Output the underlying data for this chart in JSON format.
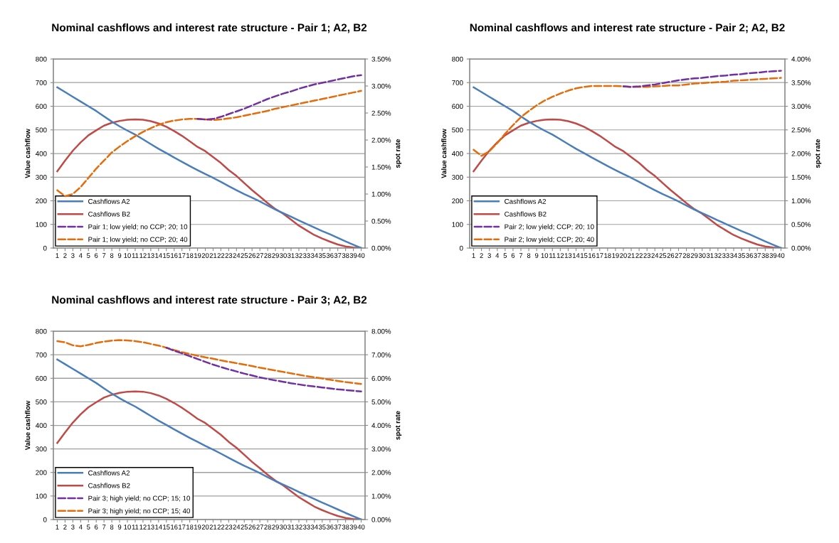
{
  "chart_data": [
    {
      "type": "line",
      "title": "Nominal cashflows and interest rate structure - Pair 1; A2, B2",
      "ylabel": "Value cashflow",
      "y2label": "spot rate",
      "grid": "y",
      "legend": "bottom left",
      "marker": "none",
      "categories": [
        "1",
        "2",
        "3",
        "4",
        "5",
        "6",
        "7",
        "8",
        "9",
        "10",
        "11",
        "12",
        "13",
        "14",
        "15",
        "16",
        "17",
        "18",
        "19",
        "20",
        "21",
        "22",
        "23",
        "24",
        "25",
        "26",
        "27",
        "28",
        "29",
        "30",
        "31",
        "32",
        "33",
        "34",
        "35",
        "36",
        "37",
        "38",
        "39",
        "40"
      ],
      "ylim": [
        0,
        800
      ],
      "yticks": [
        0,
        100,
        200,
        300,
        400,
        500,
        600,
        700,
        800
      ],
      "y2lim": [
        0,
        3.5
      ],
      "y2ticks": [
        {
          "value": 0,
          "label": "0.00%"
        },
        {
          "value": 0.5,
          "label": "0.50%"
        },
        {
          "value": 1,
          "label": "1.00%"
        },
        {
          "value": 1.5,
          "label": "1.50%"
        },
        {
          "value": 2,
          "label": "2.00%"
        },
        {
          "value": 2.5,
          "label": "2.50%"
        },
        {
          "value": 3,
          "label": "3.00%"
        },
        {
          "value": 3.5,
          "label": "3.50%"
        }
      ],
      "series": [
        {
          "name": "Cashflows A2",
          "color": "#4a7ebb",
          "line_style": "solid",
          "values": [
            680,
            660,
            640,
            620,
            600,
            580,
            557,
            535,
            515,
            497,
            480,
            460,
            440,
            420,
            402,
            383,
            365,
            347,
            330,
            313,
            297,
            280,
            262,
            245,
            228,
            213,
            197,
            180,
            163,
            148,
            133,
            117,
            102,
            87,
            72,
            58,
            43,
            28,
            14,
            0
          ]
        },
        {
          "name": "Cashflows B2",
          "color": "#be4b48",
          "line_style": "solid",
          "values": [
            325,
            370,
            412,
            447,
            477,
            498,
            518,
            530,
            538,
            543,
            544,
            543,
            537,
            527,
            513,
            495,
            475,
            452,
            428,
            410,
            385,
            360,
            330,
            305,
            275,
            245,
            218,
            190,
            165,
            145,
            120,
            95,
            75,
            55,
            40,
            27,
            15,
            7,
            2,
            0
          ]
        },
        {
          "name": "Pair 1; low yield; no CCP; 20; 10",
          "color": "#7030a0",
          "line_style": "dashed",
          "axis": "y2",
          "values": [
            null,
            null,
            null,
            null,
            null,
            null,
            null,
            null,
            null,
            null,
            null,
            null,
            null,
            null,
            null,
            null,
            null,
            null,
            2.39,
            2.38,
            2.39,
            2.43,
            2.48,
            2.53,
            2.58,
            2.64,
            2.7,
            2.76,
            2.81,
            2.86,
            2.9,
            2.95,
            2.99,
            3.03,
            3.06,
            3.09,
            3.12,
            3.15,
            3.18,
            3.2
          ]
        },
        {
          "name": "Pair 1; low yield; no CCP; 20; 40",
          "color": "#e46c0a",
          "line_style": "dashed",
          "axis": "y2",
          "values": [
            1.07,
            0.96,
            1.0,
            1.13,
            1.3,
            1.47,
            1.62,
            1.77,
            1.88,
            1.98,
            2.07,
            2.15,
            2.22,
            2.28,
            2.33,
            2.36,
            2.38,
            2.39,
            2.39,
            2.38,
            2.37,
            2.38,
            2.4,
            2.42,
            2.45,
            2.48,
            2.51,
            2.54,
            2.58,
            2.61,
            2.64,
            2.67,
            2.7,
            2.73,
            2.76,
            2.79,
            2.82,
            2.85,
            2.88,
            2.91
          ]
        }
      ]
    },
    {
      "type": "line",
      "title": "Nominal cashflows and interest rate structure - Pair 2; A2, B2",
      "ylabel": "Value cashflow",
      "y2label": "spot rate",
      "grid": "y",
      "legend": "bottom left",
      "marker": "none",
      "categories": [
        "1",
        "2",
        "3",
        "4",
        "5",
        "6",
        "7",
        "8",
        "9",
        "10",
        "11",
        "12",
        "13",
        "14",
        "15",
        "16",
        "17",
        "18",
        "19",
        "20",
        "21",
        "22",
        "23",
        "24",
        "25",
        "26",
        "27",
        "28",
        "29",
        "30",
        "31",
        "32",
        "33",
        "34",
        "35",
        "36",
        "37",
        "38",
        "39",
        "40"
      ],
      "ylim": [
        0,
        800
      ],
      "yticks": [
        0,
        100,
        200,
        300,
        400,
        500,
        600,
        700,
        800
      ],
      "y2lim": [
        0,
        4
      ],
      "y2ticks": [
        {
          "value": 0,
          "label": "0.00%"
        },
        {
          "value": 0.5,
          "label": "0.50%"
        },
        {
          "value": 1,
          "label": "1.00%"
        },
        {
          "value": 1.5,
          "label": "1.50%"
        },
        {
          "value": 2,
          "label": "2.00%"
        },
        {
          "value": 2.5,
          "label": "2.50%"
        },
        {
          "value": 3,
          "label": "3.00%"
        },
        {
          "value": 3.5,
          "label": "3.50%"
        },
        {
          "value": 4,
          "label": "4.00%"
        }
      ],
      "series": [
        {
          "name": "Cashflows A2",
          "color": "#4a7ebb",
          "line_style": "solid",
          "values": [
            680,
            660,
            640,
            620,
            600,
            580,
            557,
            535,
            515,
            497,
            480,
            460,
            440,
            420,
            402,
            383,
            365,
            347,
            330,
            313,
            297,
            280,
            262,
            245,
            228,
            213,
            197,
            180,
            163,
            148,
            133,
            117,
            102,
            87,
            72,
            58,
            43,
            28,
            14,
            0
          ]
        },
        {
          "name": "Cashflows B2",
          "color": "#be4b48",
          "line_style": "solid",
          "values": [
            325,
            370,
            412,
            447,
            477,
            498,
            518,
            530,
            538,
            543,
            544,
            543,
            537,
            527,
            513,
            495,
            475,
            452,
            428,
            410,
            385,
            360,
            330,
            305,
            275,
            245,
            218,
            190,
            165,
            145,
            120,
            95,
            75,
            55,
            40,
            27,
            15,
            7,
            2,
            0
          ]
        },
        {
          "name": "Pair 2; low yield; CCP; 20; 10",
          "color": "#7030a0",
          "line_style": "dashed",
          "axis": "y2",
          "values": [
            null,
            null,
            null,
            null,
            null,
            null,
            null,
            null,
            null,
            null,
            null,
            null,
            null,
            null,
            null,
            null,
            null,
            null,
            null,
            3.42,
            3.41,
            3.42,
            3.44,
            3.46,
            3.49,
            3.52,
            3.55,
            3.57,
            3.59,
            3.6,
            3.62,
            3.64,
            3.65,
            3.67,
            3.68,
            3.7,
            3.71,
            3.73,
            3.74,
            3.75
          ]
        },
        {
          "name": "Pair 2; low yield; CCP; 20; 40",
          "color": "#e46c0a",
          "line_style": "dashed",
          "axis": "y2",
          "values": [
            2.08,
            1.95,
            2.05,
            2.22,
            2.42,
            2.6,
            2.77,
            2.9,
            3.02,
            3.12,
            3.2,
            3.27,
            3.33,
            3.38,
            3.41,
            3.43,
            3.43,
            3.43,
            3.43,
            3.42,
            3.41,
            3.41,
            3.41,
            3.42,
            3.43,
            3.44,
            3.44,
            3.46,
            3.48,
            3.49,
            3.5,
            3.51,
            3.52,
            3.54,
            3.55,
            3.56,
            3.57,
            3.58,
            3.59,
            3.6
          ]
        }
      ]
    },
    {
      "type": "line",
      "title": "Nominal cashflows and interest rate structure - Pair 3; A2, B2",
      "ylabel": "Value cashflow",
      "y2label": "spot rate",
      "grid": "y",
      "legend": "bottom left",
      "marker": "none",
      "categories": [
        "1",
        "2",
        "3",
        "4",
        "5",
        "6",
        "7",
        "8",
        "9",
        "10",
        "11",
        "12",
        "13",
        "14",
        "15",
        "16",
        "17",
        "18",
        "19",
        "20",
        "21",
        "22",
        "23",
        "24",
        "25",
        "26",
        "27",
        "28",
        "29",
        "30",
        "31",
        "32",
        "33",
        "34",
        "35",
        "36",
        "37",
        "38",
        "39",
        "40"
      ],
      "ylim": [
        0,
        800
      ],
      "yticks": [
        0,
        100,
        200,
        300,
        400,
        500,
        600,
        700,
        800
      ],
      "y2lim": [
        0,
        8
      ],
      "y2ticks": [
        {
          "value": 0,
          "label": "0.00%"
        },
        {
          "value": 1,
          "label": "1.00%"
        },
        {
          "value": 2,
          "label": "2.00%"
        },
        {
          "value": 3,
          "label": "3.00%"
        },
        {
          "value": 4,
          "label": "4.00%"
        },
        {
          "value": 5,
          "label": "5.00%"
        },
        {
          "value": 6,
          "label": "6.00%"
        },
        {
          "value": 7,
          "label": "7.00%"
        },
        {
          "value": 8,
          "label": "8.00%"
        }
      ],
      "series": [
        {
          "name": "Cashflows A2",
          "color": "#4a7ebb",
          "line_style": "solid",
          "values": [
            680,
            660,
            640,
            620,
            600,
            580,
            557,
            535,
            515,
            497,
            480,
            460,
            440,
            420,
            402,
            383,
            365,
            347,
            330,
            313,
            297,
            280,
            262,
            245,
            228,
            213,
            197,
            180,
            163,
            148,
            133,
            117,
            102,
            87,
            72,
            58,
            43,
            28,
            14,
            0
          ]
        },
        {
          "name": "Cashflows B2",
          "color": "#be4b48",
          "line_style": "solid",
          "values": [
            325,
            370,
            412,
            447,
            477,
            498,
            518,
            530,
            538,
            543,
            544,
            543,
            537,
            527,
            513,
            495,
            475,
            452,
            428,
            410,
            385,
            360,
            330,
            305,
            275,
            245,
            218,
            190,
            165,
            145,
            120,
            95,
            75,
            55,
            40,
            27,
            15,
            7,
            2,
            0
          ]
        },
        {
          "name": "Pair 3; high yield; no CCP; 15; 10",
          "color": "#7030a0",
          "line_style": "dashed",
          "axis": "y2",
          "values": [
            null,
            null,
            null,
            null,
            null,
            null,
            null,
            null,
            null,
            null,
            null,
            null,
            null,
            null,
            7.3,
            7.17,
            7.06,
            6.94,
            6.82,
            6.7,
            6.58,
            6.48,
            6.38,
            6.29,
            6.2,
            6.12,
            6.04,
            5.97,
            5.91,
            5.85,
            5.79,
            5.74,
            5.69,
            5.65,
            5.61,
            5.57,
            5.53,
            5.5,
            5.47,
            5.44
          ]
        },
        {
          "name": "Pair 3; high yield; no CCP; 15; 40",
          "color": "#e46c0a",
          "line_style": "dashed",
          "axis": "y2",
          "values": [
            7.58,
            7.53,
            7.4,
            7.36,
            7.42,
            7.5,
            7.56,
            7.6,
            7.62,
            7.61,
            7.58,
            7.53,
            7.46,
            7.39,
            7.3,
            7.2,
            7.11,
            7.03,
            6.96,
            6.89,
            6.83,
            6.76,
            6.7,
            6.64,
            6.58,
            6.52,
            6.45,
            6.39,
            6.33,
            6.27,
            6.21,
            6.15,
            6.09,
            6.04,
            5.99,
            5.94,
            5.89,
            5.84,
            5.8,
            5.76
          ]
        }
      ]
    }
  ]
}
